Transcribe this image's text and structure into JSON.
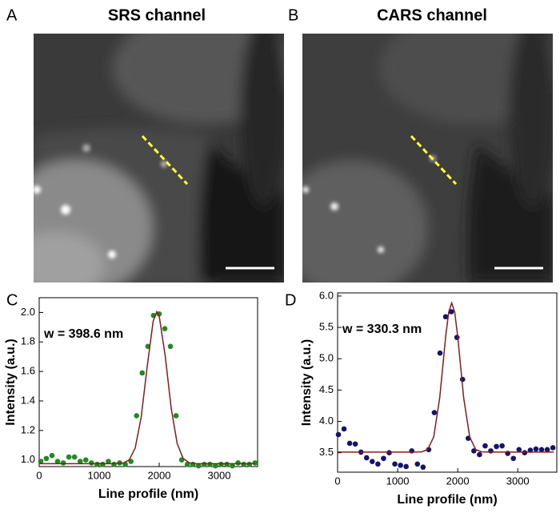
{
  "figure": {
    "panels": [
      {
        "label": "A",
        "title": "SRS channel"
      },
      {
        "label": "B",
        "title": "CARS channel"
      }
    ]
  },
  "chart_data": [
    {
      "type": "scatter",
      "label": "C",
      "annotation": "w = 398.6 nm",
      "x_label": "Line profile (nm)",
      "y_label": "Intensity (a.u.)",
      "xlim": [
        0,
        3640
      ],
      "ylim": [
        0.955,
        2.1
      ],
      "xticks": [
        0,
        1000,
        2000,
        3000
      ],
      "yticks": [
        {
          "value": 1,
          "label": "1.0"
        },
        {
          "value": 1.2,
          "label": "1.2"
        },
        {
          "value": 1.4,
          "label": "1.4"
        },
        {
          "value": 1.6,
          "label": "1.6"
        },
        {
          "value": 1.8,
          "label": "1.8"
        },
        {
          "value": 2,
          "label": "2.0"
        }
      ],
      "series": [
        {
          "style": "points",
          "color": "#1e8c1e",
          "x": [
            25,
            119,
            213,
            307,
            401,
            495,
            589,
            683,
            777,
            871,
            965,
            1059,
            1153,
            1247,
            1341,
            1435,
            1529,
            1623,
            1717,
            1811,
            1905,
            1999,
            2093,
            2187,
            2281,
            2375,
            2469,
            2563,
            2657,
            2751,
            2845,
            2939,
            3033,
            3127,
            3221,
            3315,
            3409,
            3503,
            3597
          ],
          "values": [
            0.99,
            1.01,
            1.03,
            0.99,
            0.98,
            1.02,
            1.02,
            0.99,
            1.0,
            0.98,
            0.97,
            0.97,
            0.99,
            0.97,
            0.98,
            0.97,
            0.99,
            1.3,
            1.59,
            1.77,
            1.98,
            1.99,
            1.89,
            1.77,
            1.3,
            1.0,
            0.97,
            0.97,
            0.96,
            0.97,
            0.97,
            0.96,
            0.97,
            0.97,
            0.96,
            0.98,
            0.97,
            0.97,
            0.98
          ]
        },
        {
          "style": "line",
          "color": "#8b1a1a",
          "x": [
            0,
            1200,
            1400,
            1500,
            1600,
            1700,
            1800,
            1900,
            1960,
            2000,
            2100,
            2200,
            2300,
            2400,
            2500,
            2600,
            3600
          ],
          "values": [
            0.975,
            0.975,
            0.979,
            1.0,
            1.081,
            1.291,
            1.633,
            1.942,
            2.005,
            1.976,
            1.706,
            1.351,
            1.111,
            1.01,
            0.981,
            0.975,
            0.975
          ]
        }
      ]
    },
    {
      "type": "scatter",
      "label": "D",
      "annotation": "w = 330.3 nm",
      "x_label": "Line profile (nm)",
      "y_label": "Intensity (a.u.)",
      "xlim": [
        0,
        3650
      ],
      "ylim": [
        3.19,
        6.05
      ],
      "xticks": [
        0,
        1000,
        2000,
        3000
      ],
      "yticks": [
        3.5,
        {
          "value": 4,
          "label": "4.0"
        },
        4.5,
        {
          "value": 5,
          "label": "5.0"
        },
        5.5,
        {
          "value": 6,
          "label": "6.0"
        }
      ],
      "series": [
        {
          "style": "points",
          "color": "#14146e",
          "x": [
            13,
            107,
            201,
            295,
            389,
            483,
            577,
            671,
            765,
            859,
            953,
            1047,
            1141,
            1235,
            1329,
            1423,
            1517,
            1611,
            1705,
            1799,
            1893,
            1987,
            2081,
            2175,
            2269,
            2363,
            2457,
            2551,
            2645,
            2739,
            2833,
            2927,
            3021,
            3115,
            3209,
            3303,
            3397,
            3491,
            3585
          ],
          "values": [
            3.79,
            3.88,
            3.65,
            3.64,
            3.51,
            3.42,
            3.36,
            3.32,
            3.41,
            3.5,
            3.32,
            3.3,
            3.28,
            3.53,
            3.32,
            3.27,
            3.55,
            4.14,
            5.09,
            5.67,
            5.75,
            5.34,
            4.67,
            3.73,
            3.53,
            3.47,
            3.61,
            3.53,
            3.6,
            3.61,
            3.49,
            3.41,
            3.55,
            3.5,
            3.54,
            3.56,
            3.55,
            3.55,
            3.58
          ]
        },
        {
          "style": "line",
          "color": "#8b1a1a",
          "x": [
            0,
            1200,
            1400,
            1500,
            1600,
            1700,
            1800,
            1850,
            1900,
            1950,
            2000,
            2100,
            2200,
            2300,
            2400,
            2600,
            3600
          ],
          "values": [
            3.51,
            3.51,
            3.514,
            3.551,
            3.751,
            4.372,
            5.357,
            5.743,
            5.89,
            5.743,
            5.357,
            4.372,
            3.751,
            3.551,
            3.514,
            3.51,
            3.51
          ]
        }
      ]
    }
  ]
}
